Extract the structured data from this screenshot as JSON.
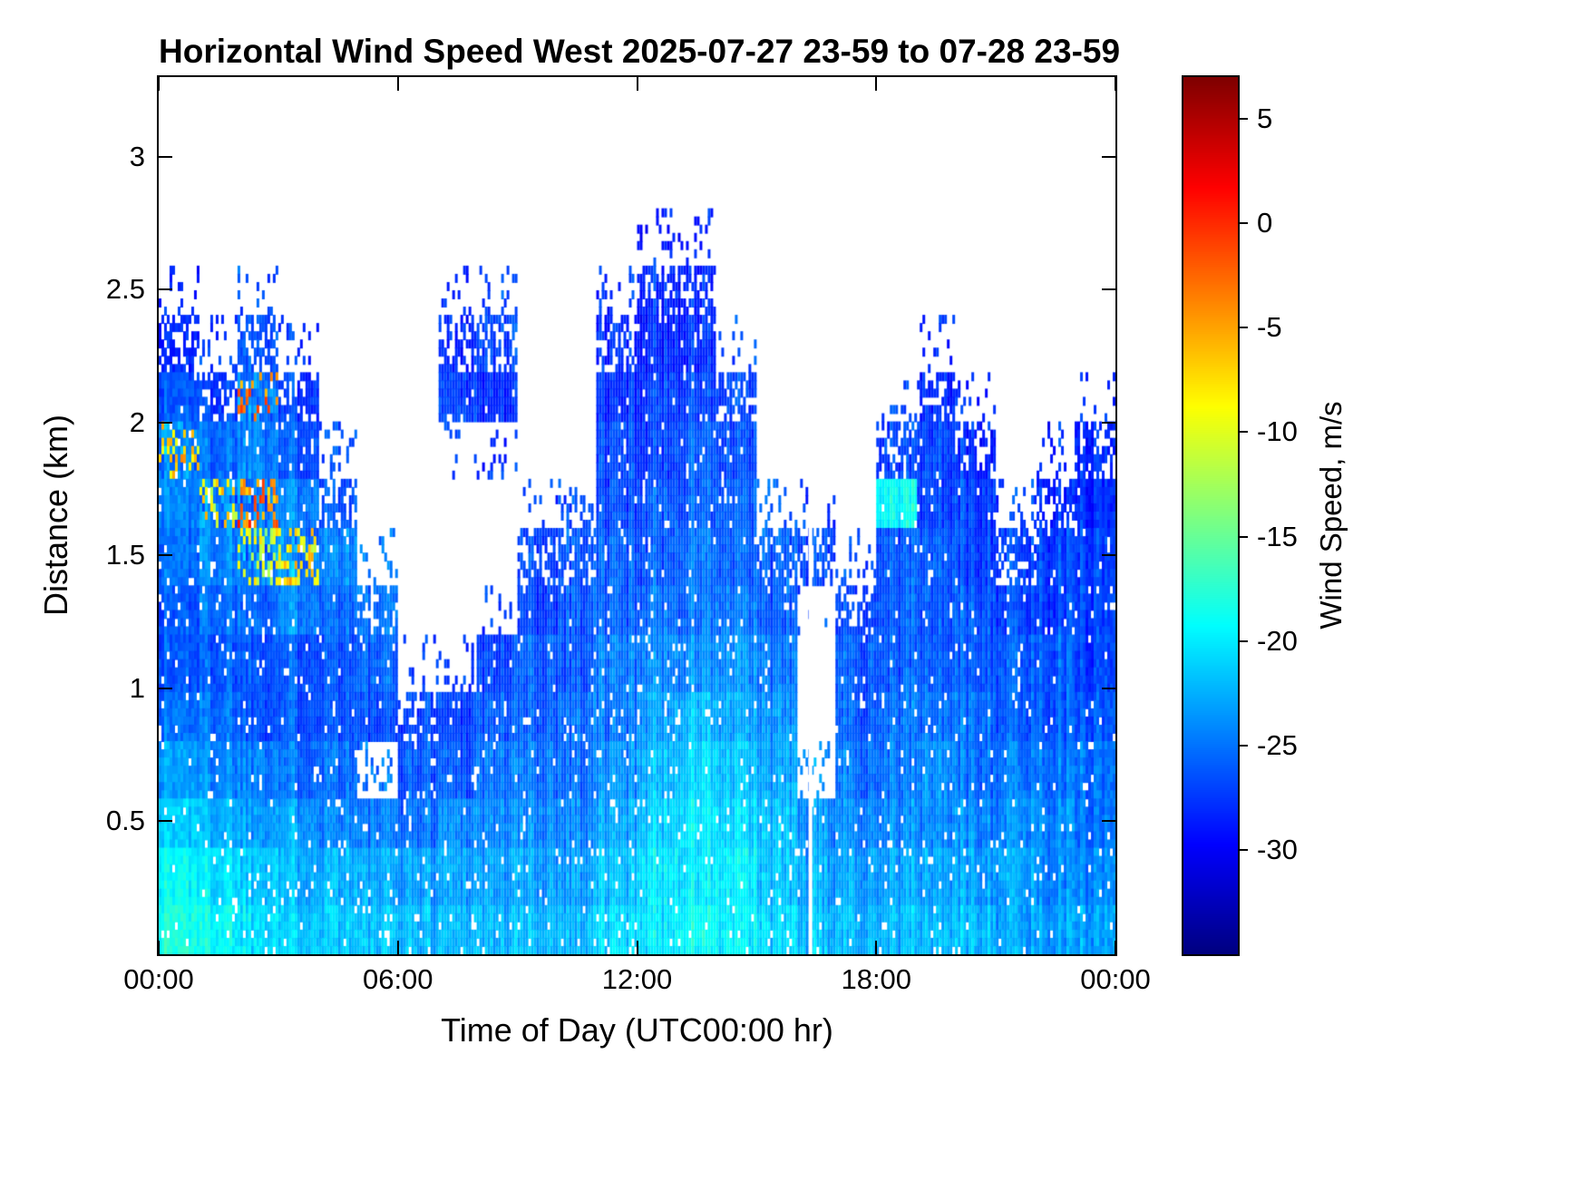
{
  "figure": {
    "background_color": "#ffffff",
    "axis_color": "#000000"
  },
  "chart_data": {
    "type": "heatmap",
    "title": "Horizontal Wind Speed West 2025-07-27 23-59 to 07-28 23-59",
    "xlabel": "Time of Day (UTC00:00 hr)",
    "ylabel": "Distance (km)",
    "x_ticks": [
      "00:00",
      "06:00",
      "12:00",
      "18:00",
      "00:00"
    ],
    "x_tick_hours": [
      0,
      6,
      12,
      18,
      24
    ],
    "x_range_hours": [
      0,
      24
    ],
    "y_ticks": [
      "0.5",
      "1",
      "1.5",
      "2",
      "2.5",
      "3"
    ],
    "y_tick_values": [
      0.5,
      1,
      1.5,
      2,
      2.5,
      3
    ],
    "y_range_km": [
      0,
      3.3
    ],
    "grid": false,
    "colorbar": {
      "label": "Wind Speed, m/s",
      "tick_labels": [
        "5",
        "0",
        "-5",
        "-10",
        "-15",
        "-20",
        "-25",
        "-30"
      ],
      "tick_values": [
        5,
        0,
        -5,
        -10,
        -15,
        -20,
        -25,
        -30
      ],
      "range": [
        -35,
        7
      ],
      "colormap": "jet",
      "position": "right"
    },
    "no_data_value": null,
    "data_gap_hours": [
      16.35
    ],
    "time_centers_hr": [
      0.5,
      1.5,
      2.5,
      3.5,
      4.5,
      5.5,
      6.5,
      7.5,
      8.5,
      9.5,
      10.5,
      11.5,
      12.5,
      13.5,
      14.5,
      15.5,
      16.5,
      17.5,
      18.5,
      19.5,
      20.5,
      21.5,
      22.5,
      23.5
    ],
    "height_centers_km": [
      0.1,
      0.3,
      0.5,
      0.7,
      0.9,
      1.1,
      1.3,
      1.5,
      1.7,
      1.9,
      2.1,
      2.3,
      2.5
    ],
    "values_mps": [
      [
        -18,
        -19,
        -21,
        -23,
        -25,
        -26,
        -26,
        -25,
        -24,
        -6,
        -26,
        -28,
        null
      ],
      [
        -19,
        -20,
        -22,
        -24,
        -25,
        -26,
        -25,
        -24,
        -8,
        -25,
        -27,
        null,
        null
      ],
      [
        -20,
        -21,
        -23,
        -24,
        -26,
        -26,
        -25,
        -10,
        -3,
        -24,
        -2,
        -26,
        null
      ],
      [
        -21,
        -22,
        -23,
        -25,
        -26,
        -26,
        -24,
        -7,
        -24,
        -26,
        -27,
        null,
        null
      ],
      [
        -21,
        -22,
        -24,
        -25,
        -26,
        -26,
        -25,
        -24,
        -26,
        null,
        null,
        null,
        null
      ],
      [
        -22,
        -23,
        -25,
        null,
        -27,
        -26,
        -25,
        null,
        null,
        null,
        null,
        null,
        null
      ],
      [
        -22,
        -23,
        -25,
        -26,
        -27,
        null,
        null,
        null,
        null,
        null,
        null,
        null,
        null
      ],
      [
        -22,
        -23,
        -24,
        -26,
        -27,
        null,
        null,
        null,
        null,
        null,
        -27,
        -28,
        null
      ],
      [
        -22,
        -23,
        -24,
        -25,
        -26,
        -27,
        null,
        null,
        null,
        null,
        -28,
        -27,
        null
      ],
      [
        -22,
        -23,
        -24,
        -25,
        -26,
        -26,
        -27,
        -27,
        null,
        null,
        null,
        null,
        null
      ],
      [
        -22,
        -23,
        -24,
        -25,
        -25,
        -26,
        -26,
        -26,
        null,
        null,
        null,
        null,
        null
      ],
      [
        -21,
        -22,
        -23,
        -24,
        -25,
        -25,
        -26,
        -26,
        -27,
        -27,
        -28,
        -28,
        null
      ],
      [
        -20,
        -20,
        -21,
        -22,
        -23,
        -24,
        -25,
        -26,
        -26,
        -27,
        -27,
        -28,
        -28
      ],
      [
        -19,
        -20,
        -20,
        -21,
        -22,
        -24,
        -25,
        -25,
        -26,
        -26,
        -27,
        -28,
        -28
      ],
      [
        -20,
        -20,
        -21,
        -22,
        -23,
        -24,
        -25,
        -26,
        -26,
        -27,
        -27,
        null,
        null
      ],
      [
        -21,
        -22,
        -22,
        -23,
        -24,
        -25,
        -26,
        -26,
        null,
        null,
        null,
        null,
        null
      ],
      [
        -22,
        -23,
        -24,
        null,
        null,
        null,
        null,
        -27,
        null,
        null,
        null,
        null,
        null
      ],
      [
        -22,
        -23,
        -24,
        -25,
        -26,
        -26,
        -27,
        null,
        null,
        null,
        null,
        null,
        null
      ],
      [
        -22,
        -23,
        -24,
        -25,
        -25,
        -26,
        -26,
        -26,
        -19,
        -27,
        null,
        null,
        null
      ],
      [
        -22,
        -23,
        -24,
        -24,
        -25,
        -26,
        -26,
        -26,
        -27,
        -27,
        -28,
        null,
        null
      ],
      [
        -22,
        -23,
        -24,
        -25,
        -25,
        -26,
        -26,
        -27,
        -27,
        -28,
        null,
        null,
        null
      ],
      [
        -23,
        -23,
        -24,
        -25,
        -26,
        -26,
        -27,
        -27,
        null,
        null,
        null,
        null,
        null
      ],
      [
        -23,
        -24,
        -24,
        -25,
        -26,
        -26,
        -27,
        -27,
        -28,
        null,
        null,
        null,
        null
      ],
      [
        -23,
        -24,
        -25,
        -25,
        -26,
        -27,
        -27,
        -27,
        -28,
        -28,
        null,
        null,
        null
      ]
    ]
  }
}
